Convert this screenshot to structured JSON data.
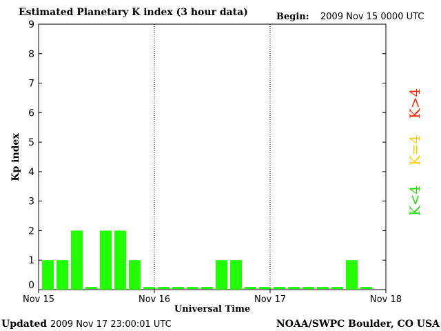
{
  "header": {
    "title": "Estimated Planetary K index (3 hour data)",
    "begin_label": "Begin:",
    "begin_value": "2009 Nov 15 0000 UTC"
  },
  "footer": {
    "updated_label": "Updated",
    "updated_value": "2009 Nov 17 23:00:01 UTC",
    "source": "NOAA/SWPC Boulder, CO USA"
  },
  "legend": [
    {
      "label": "K>4",
      "color": "#ff2200"
    },
    {
      "label": "K=4",
      "color": "#ffcc00"
    },
    {
      "label": "K<4",
      "color": "#22dd00"
    }
  ],
  "chart_data": {
    "type": "bar",
    "title": "Estimated Planetary K index (3 hour data)",
    "xlabel": "Universal Time",
    "ylabel": "Kp index",
    "ylim": [
      0,
      9
    ],
    "yticks": [
      0,
      1,
      2,
      3,
      4,
      5,
      6,
      7,
      8,
      9
    ],
    "xticks": [
      "Nov 15",
      "Nov 16",
      "Nov 17",
      "Nov 18"
    ],
    "interval_hours": 3,
    "bar_color": "#22ff00",
    "values": [
      1,
      1,
      2,
      0,
      2,
      2,
      1,
      0,
      0,
      0,
      0,
      0,
      1,
      1,
      0,
      0,
      0,
      0,
      0,
      0,
      0,
      1,
      0
    ]
  }
}
